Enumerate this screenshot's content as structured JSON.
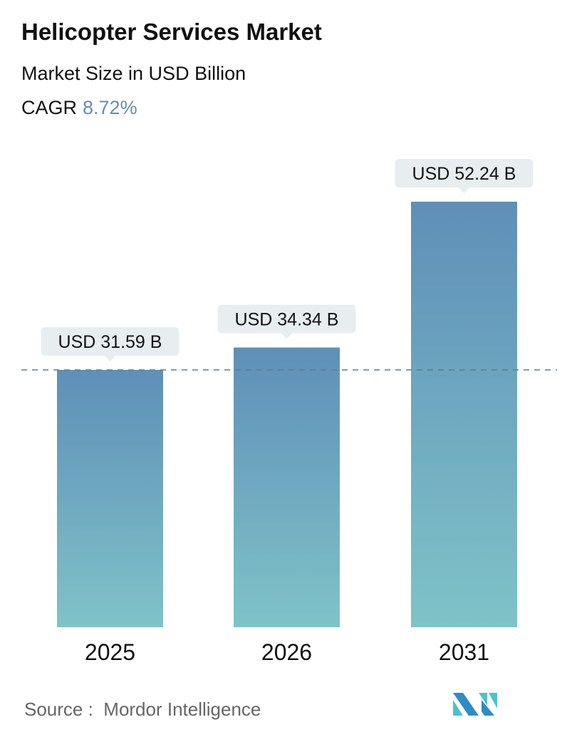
{
  "chart_data": {
    "type": "bar",
    "title": "Helicopter Services Market",
    "subtitle": "Market Size in USD Billion",
    "cagr_label": "CAGR",
    "cagr_value": "8.72%",
    "categories": [
      "2025",
      "2026",
      "2031"
    ],
    "values": [
      31.59,
      34.34,
      52.24
    ],
    "data_labels": [
      "USD 31.59 B",
      "USD 34.34 B",
      "USD 52.24 B"
    ],
    "ylim": [
      0,
      52.24
    ],
    "grid": false,
    "reference_line": {
      "value": 31.59,
      "style": "dashed"
    },
    "colors": {
      "bar_top": "#5f8fb8",
      "bar_bottom": "#7fc3c8",
      "label_bg": "#e8edf0",
      "cagr": "#5f8fb8"
    }
  },
  "source": {
    "label": "Source :",
    "name": "Mordor Intelligence"
  },
  "logo": {
    "icon": "mordor-intelligence-logo"
  }
}
